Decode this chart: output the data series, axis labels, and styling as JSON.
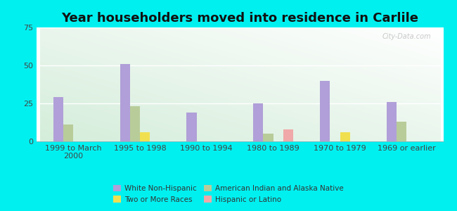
{
  "title": "Year householders moved into residence in Carlile",
  "categories": [
    "1999 to March\n2000",
    "1995 to 1998",
    "1990 to 1994",
    "1980 to 1989",
    "1970 to 1979",
    "1969 or earlier"
  ],
  "series": {
    "White Non-Hispanic": [
      29,
      51,
      19,
      25,
      40,
      26
    ],
    "American Indian and Alaska Native": [
      11,
      23,
      0,
      5,
      0,
      13
    ],
    "Two or More Races": [
      0,
      6,
      0,
      0,
      6,
      0
    ],
    "Hispanic or Latino": [
      0,
      0,
      0,
      8,
      0,
      0
    ]
  },
  "colors": {
    "White Non-Hispanic": "#b09fd8",
    "American Indian and Alaska Native": "#b8cc9a",
    "Two or More Races": "#f0e050",
    "Hispanic or Latino": "#f0a8a8"
  },
  "ylim": [
    0,
    75
  ],
  "yticks": [
    0,
    25,
    50,
    75
  ],
  "background_color": "#00f0f0",
  "bar_width": 0.15,
  "title_fontsize": 13,
  "tick_fontsize": 8,
  "watermark": "City-Data.com"
}
